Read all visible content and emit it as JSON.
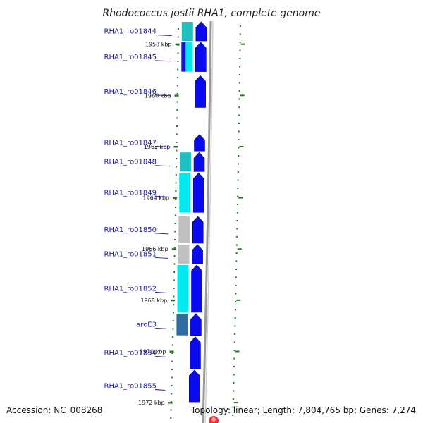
{
  "title": "Rhodococcus jostii RHA1, complete genome",
  "footer": {
    "accession": "Accession: NC_008268",
    "summary": "Topology: linear; Length: 7,804,765 bp; Genes: 7,274"
  },
  "colors": {
    "forward_gene": "#0a0af0",
    "label_text": "#1a1aa8",
    "tick": "#1e7a1e",
    "backbone": "#9a9a9a",
    "cog_teal": "#20c0c0",
    "cog_cyan": "#00e8f0",
    "cog_grey": "#c0c0c0",
    "cog_steel": "#2f6fa0",
    "marker": "#ff2a2a"
  },
  "scale": {
    "start_kbp": 1957.1,
    "end_kbp": 1972.3
  },
  "kbp_ticks": [
    {
      "kbp": 1958,
      "label": "1958 kbp"
    },
    {
      "kbp": 1960,
      "label": "1960 kbp"
    },
    {
      "kbp": 1962,
      "label": "1962 kbp"
    },
    {
      "kbp": 1964,
      "label": "1964 kbp"
    },
    {
      "kbp": 1966,
      "label": "1966 kbp"
    },
    {
      "kbp": 1968,
      "label": "1968 kbp"
    },
    {
      "kbp": 1970,
      "label": "1970 kbp"
    },
    {
      "kbp": 1972,
      "label": "1972 kbp"
    }
  ],
  "genes": [
    {
      "name": "RHA1_ro01844",
      "start_kbp": 1957.1,
      "end_kbp": 1957.9,
      "cog": "teal"
    },
    {
      "name": "RHA1_ro01845",
      "start_kbp": 1957.9,
      "end_kbp": 1959.1,
      "cog": "cyan-split"
    },
    {
      "name": "RHA1_ro01846",
      "start_kbp": 1959.2,
      "end_kbp": 1960.5,
      "cog": "none"
    },
    {
      "name": "RHA1_ro01847",
      "start_kbp": 1961.5,
      "end_kbp": 1962.2,
      "cog": "none"
    },
    {
      "name": "RHA1_ro01848",
      "start_kbp": 1962.2,
      "end_kbp": 1963.0,
      "cog": "teal"
    },
    {
      "name": "RHA1_ro01849",
      "start_kbp": 1963.0,
      "end_kbp": 1964.6,
      "cog": "cyan"
    },
    {
      "name": "RHA1_ro01850",
      "start_kbp": 1964.7,
      "end_kbp": 1965.8,
      "cog": "grey"
    },
    {
      "name": "RHA1_ro01851",
      "start_kbp": 1965.8,
      "end_kbp": 1966.6,
      "cog": "grey"
    },
    {
      "name": "RHA1_ro01852",
      "start_kbp": 1966.6,
      "end_kbp": 1968.5,
      "cog": "cyan"
    },
    {
      "name": "aroE3",
      "start_kbp": 1968.5,
      "end_kbp": 1969.4,
      "cog": "steel"
    },
    {
      "name": "RHA1_ro01854",
      "start_kbp": 1969.4,
      "end_kbp": 1970.7,
      "cog": "none"
    },
    {
      "name": "RHA1_ro01855",
      "start_kbp": 1970.7,
      "end_kbp": 1972.0,
      "cog": "none"
    }
  ]
}
